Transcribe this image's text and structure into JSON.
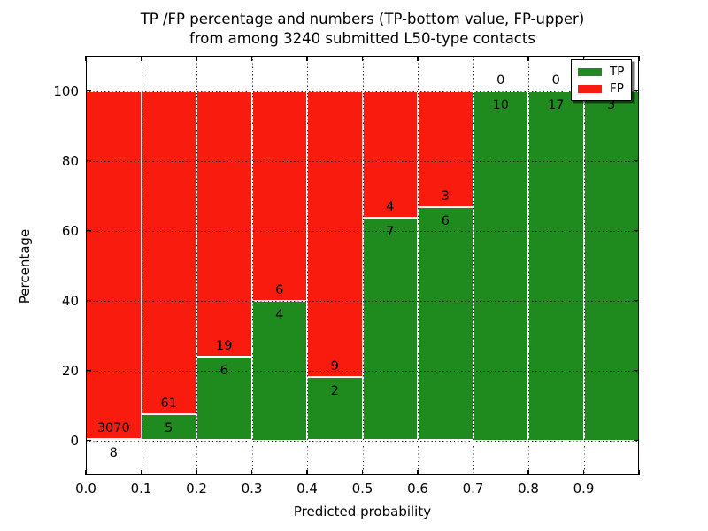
{
  "title": {
    "line1": "TP /FP percentage and numbers (TP-bottom value, FP-upper)",
    "line2": "from among 3240 submitted L50-type contacts"
  },
  "axes": {
    "x_label": "Predicted probability",
    "y_label": "Percentage",
    "x_tick_labels": [
      "0.0",
      "0.1",
      "0.2",
      "0.3",
      "0.4",
      "0.5",
      "0.6",
      "0.7",
      "0.8",
      "0.9"
    ],
    "y_tick_labels": [
      "0",
      "20",
      "40",
      "60",
      "80",
      "100"
    ]
  },
  "legend": {
    "items": [
      {
        "label": "TP",
        "color": "#1f8b1f"
      },
      {
        "label": "FP",
        "color": "#fa1b0f"
      }
    ]
  },
  "colors": {
    "tp_green": "#1f8b1f",
    "fp_red": "#fa1b0f",
    "background": "#ffffff",
    "grid": "#000000"
  },
  "chart_data": {
    "type": "bar",
    "subtype": "stacked-percentage-histogram",
    "title": "TP /FP percentage and numbers (TP-bottom value, FP-upper) from among 3240 submitted L50-type contacts",
    "xlabel": "Predicted probability",
    "ylabel": "Percentage",
    "xlim": [
      0.0,
      1.0
    ],
    "ylim": [
      -10,
      110
    ],
    "bin_width": 0.1,
    "bin_starts": [
      0.0,
      0.1,
      0.2,
      0.3,
      0.4,
      0.5,
      0.6,
      0.7,
      0.8,
      0.9
    ],
    "total_contacts": 3240,
    "series": [
      {
        "name": "TP",
        "color": "#1f8b1f",
        "counts": [
          8,
          5,
          6,
          4,
          2,
          7,
          6,
          10,
          17,
          3
        ]
      },
      {
        "name": "FP",
        "color": "#fa1b0f",
        "counts": [
          3070,
          61,
          19,
          6,
          9,
          4,
          3,
          0,
          0,
          0
        ]
      }
    ],
    "tp_percent_of_bin": [
      0.26,
      7.58,
      24.0,
      40.0,
      18.18,
      63.64,
      66.67,
      100.0,
      100.0,
      100.0
    ],
    "grid": true,
    "grid_style": "dotted",
    "legend_position": "upper right",
    "annotation_note": "TP count printed just below the TP/FP boundary of each bar, FP count just above it"
  }
}
